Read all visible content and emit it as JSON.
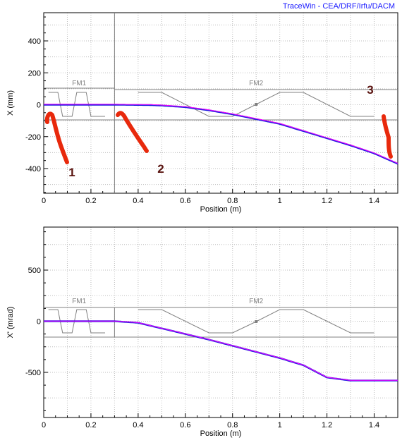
{
  "credit": "TraceWin - CEA/DRF/Irfu/DACM",
  "colors": {
    "envelope": "#2020e0",
    "centroid": "#ff00ff",
    "elements": "#808080",
    "annotation": "#e8290c"
  },
  "chart_data": [
    {
      "type": "line",
      "title": "",
      "xlabel": "Position (m)",
      "ylabel": "X (mm)",
      "xlim": [
        0,
        1.5
      ],
      "ylim": [
        -500,
        560
      ],
      "xticks": [
        "0",
        "0.2",
        "0.4",
        "0.6",
        "0.8",
        "1",
        "1.2",
        "1.4"
      ],
      "yticks": [
        "400",
        "200",
        "0",
        "-200",
        "-400"
      ],
      "grid": true,
      "element_labels": [
        "FM1",
        "FM2"
      ],
      "series": [
        {
          "role": "envelope",
          "x": [
            0,
            0.3,
            0.45,
            0.5,
            0.6,
            0.7,
            0.8,
            0.9,
            1.0,
            1.1,
            1.2,
            1.3,
            1.4,
            1.5
          ],
          "y": [
            0,
            0,
            -2,
            -5,
            -15,
            -35,
            -60,
            -90,
            -120,
            -165,
            -210,
            -255,
            -305,
            -370
          ]
        }
      ],
      "annotations": [
        "1",
        "2",
        "3"
      ]
    },
    {
      "type": "line",
      "title": "",
      "xlabel": "Position (m)",
      "ylabel": "X' (mrad)",
      "xlim": [
        0,
        1.5
      ],
      "ylim": [
        -900,
        900
      ],
      "xticks": [
        "0",
        "0.2",
        "0.4",
        "0.6",
        "0.8",
        "1",
        "1.2",
        "1.4"
      ],
      "yticks": [
        "500",
        "0",
        "-500"
      ],
      "grid": true,
      "element_labels": [
        "FM1",
        "FM2"
      ],
      "series": [
        {
          "role": "envelope",
          "x": [
            0,
            0.3,
            0.4,
            0.5,
            0.6,
            0.7,
            0.8,
            0.9,
            1.0,
            1.1,
            1.2,
            1.3,
            1.4,
            1.5
          ],
          "y": [
            0,
            0,
            -15,
            -70,
            -125,
            -180,
            -240,
            -300,
            -360,
            -430,
            -550,
            -580,
            -580,
            -580
          ]
        }
      ]
    }
  ]
}
